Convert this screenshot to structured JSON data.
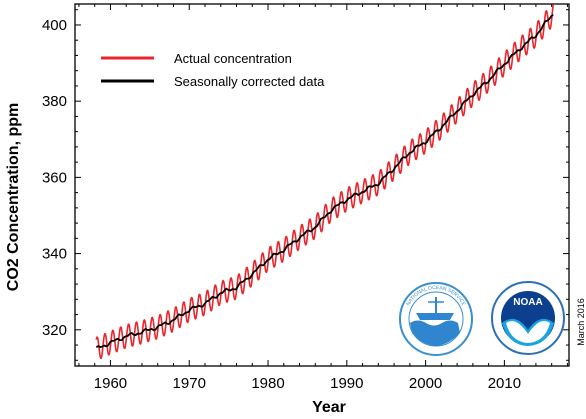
{
  "chart_data": {
    "type": "line",
    "title": "",
    "xlabel": "Year",
    "ylabel": "CO2 Concentration, ppm",
    "xlim": [
      1955.5,
      2018.2
    ],
    "ylim": [
      310.5,
      405.5
    ],
    "x_ticks": [
      1960,
      1970,
      1980,
      1990,
      2000,
      2010
    ],
    "y_ticks": [
      320,
      340,
      360,
      380,
      400
    ],
    "grid": false,
    "legend_position": "top-left",
    "note": "March 2016",
    "seasonal_amplitude_ppm": 3.0,
    "series": [
      {
        "name": "Actual concentration",
        "color": "#e8262b",
        "kind": "seasonal",
        "start_year": 1958.2,
        "end_year": 2016.2
      },
      {
        "name": "Seasonally corrected data",
        "color": "#000000",
        "kind": "trend",
        "x": [
          1958.2,
          1960,
          1962,
          1964,
          1966,
          1968,
          1970,
          1972,
          1974,
          1976,
          1978,
          1980,
          1982,
          1984,
          1986,
          1988,
          1990,
          1992,
          1994,
          1996,
          1998,
          2000,
          2002,
          2004,
          2006,
          2008,
          2010,
          2012,
          2014,
          2016.2
        ],
        "y": [
          315.0,
          316.6,
          318.3,
          319.4,
          320.7,
          322.6,
          325.2,
          326.9,
          329.7,
          331.1,
          334.6,
          338.5,
          341.0,
          344.2,
          347.0,
          351.4,
          354.2,
          356.3,
          358.4,
          362.4,
          366.6,
          369.4,
          373.2,
          377.5,
          381.8,
          385.5,
          389.8,
          393.8,
          397.3,
          403.0
        ]
      }
    ]
  },
  "logos": [
    {
      "name": "noaa-ocean-service-logo",
      "text": "NATIONAL OCEAN SERVICE"
    },
    {
      "name": "noaa-logo",
      "text": "NOAA"
    }
  ]
}
